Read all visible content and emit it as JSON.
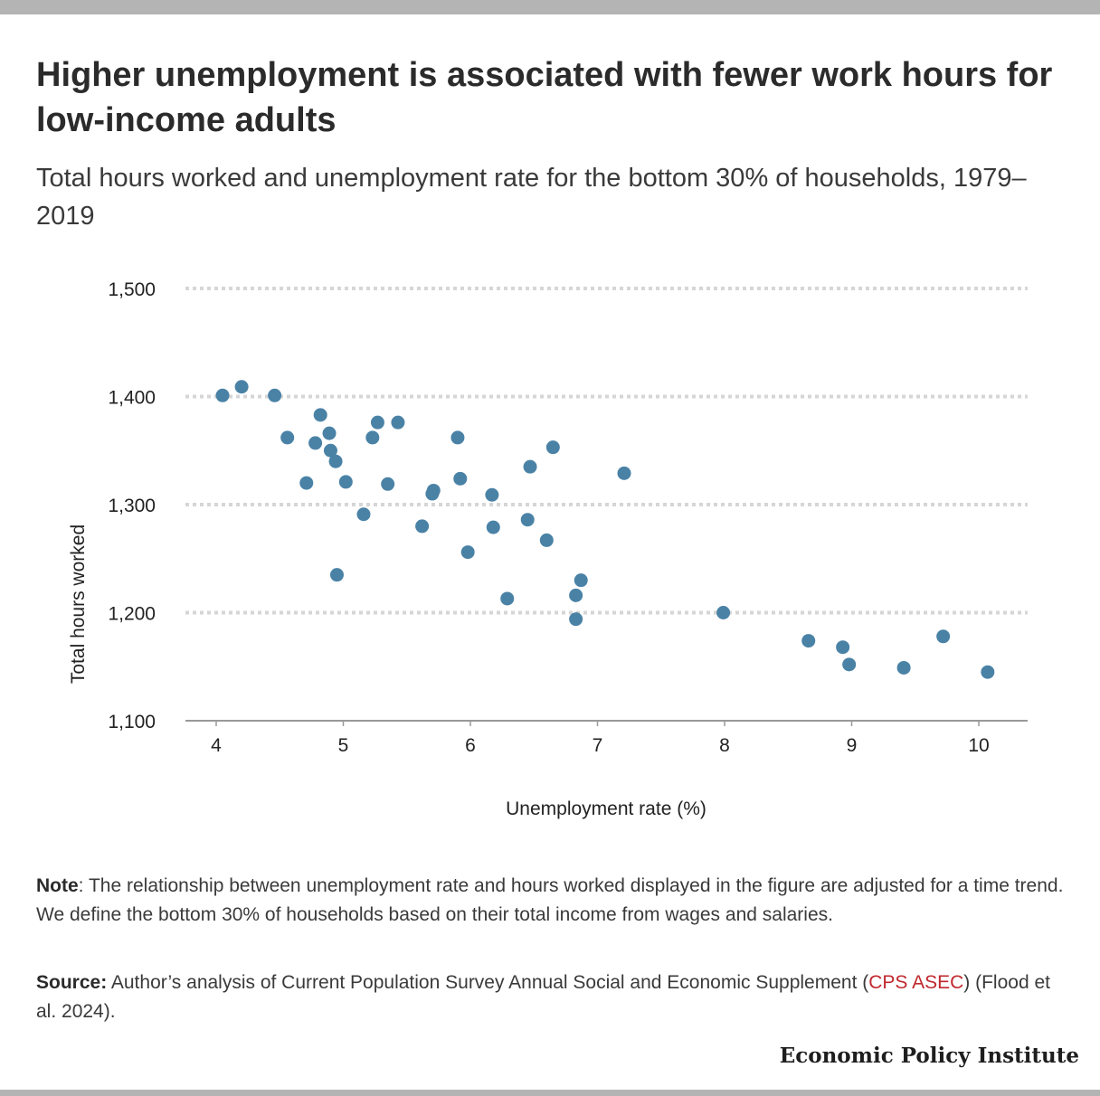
{
  "title": "Higher unemployment is associated with fewer work hours for low-income adults",
  "subtitle": "Total hours worked and unemployment rate for the bottom 30% of households, 1979–2019",
  "chart_data": {
    "type": "scatter",
    "xlabel": "Unemployment rate (%)",
    "ylabel": "Total hours worked",
    "xlim": [
      3.75,
      10.4
    ],
    "ylim": [
      1100,
      1500
    ],
    "x_ticks": [
      4,
      5,
      6,
      7,
      8,
      9,
      10
    ],
    "x_tick_labels": [
      "4",
      "5",
      "6",
      "7",
      "8",
      "9",
      "10"
    ],
    "y_ticks": [
      1100,
      1200,
      1300,
      1400,
      1500
    ],
    "y_tick_labels": [
      "1,100",
      "1,200",
      "1,300",
      "1,400",
      "1,500"
    ],
    "grid": "horizontal dotted",
    "marker_color": "#4a82a6",
    "points": [
      {
        "x": 4.05,
        "y": 1401
      },
      {
        "x": 4.2,
        "y": 1409
      },
      {
        "x": 4.46,
        "y": 1401
      },
      {
        "x": 4.56,
        "y": 1362
      },
      {
        "x": 4.71,
        "y": 1320
      },
      {
        "x": 4.78,
        "y": 1357
      },
      {
        "x": 4.82,
        "y": 1383
      },
      {
        "x": 4.89,
        "y": 1366
      },
      {
        "x": 4.9,
        "y": 1350
      },
      {
        "x": 4.94,
        "y": 1340
      },
      {
        "x": 4.95,
        "y": 1235
      },
      {
        "x": 5.02,
        "y": 1321
      },
      {
        "x": 5.16,
        "y": 1291
      },
      {
        "x": 5.23,
        "y": 1362
      },
      {
        "x": 5.27,
        "y": 1376
      },
      {
        "x": 5.35,
        "y": 1319
      },
      {
        "x": 5.43,
        "y": 1376
      },
      {
        "x": 5.62,
        "y": 1280
      },
      {
        "x": 5.7,
        "y": 1310
      },
      {
        "x": 5.71,
        "y": 1313
      },
      {
        "x": 5.9,
        "y": 1362
      },
      {
        "x": 5.92,
        "y": 1324
      },
      {
        "x": 5.98,
        "y": 1256
      },
      {
        "x": 6.17,
        "y": 1309
      },
      {
        "x": 6.18,
        "y": 1279
      },
      {
        "x": 6.29,
        "y": 1213
      },
      {
        "x": 6.45,
        "y": 1286
      },
      {
        "x": 6.47,
        "y": 1335
      },
      {
        "x": 6.6,
        "y": 1267
      },
      {
        "x": 6.65,
        "y": 1353
      },
      {
        "x": 6.83,
        "y": 1216
      },
      {
        "x": 6.83,
        "y": 1194
      },
      {
        "x": 6.87,
        "y": 1230
      },
      {
        "x": 7.21,
        "y": 1329
      },
      {
        "x": 7.99,
        "y": 1200
      },
      {
        "x": 8.66,
        "y": 1174
      },
      {
        "x": 8.93,
        "y": 1168
      },
      {
        "x": 8.98,
        "y": 1152
      },
      {
        "x": 9.41,
        "y": 1149
      },
      {
        "x": 9.72,
        "y": 1178
      },
      {
        "x": 10.07,
        "y": 1145
      }
    ]
  },
  "note": {
    "label": "Note",
    "text": ": The relationship between unemployment rate and hours worked displayed in the figure are adjusted for a time trend. We define the bottom 30% of households based on their total income from wages and salaries."
  },
  "source": {
    "label": "Source:",
    "text_before": " Author’s analysis of Current Population Survey Annual Social and Economic Supplement (",
    "link_text": "CPS ASEC",
    "text_after": ") (Flood et al. 2024)."
  },
  "branding": "Economic Policy Institute"
}
